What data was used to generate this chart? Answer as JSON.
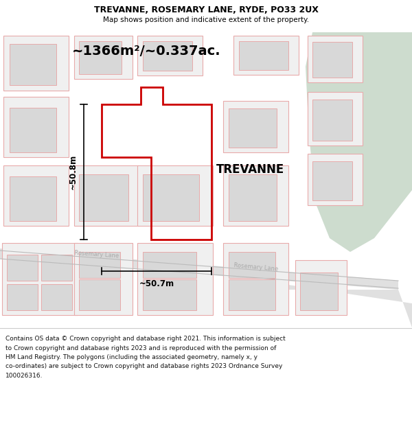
{
  "title": "TREVANNE, ROSEMARY LANE, RYDE, PO33 2UX",
  "subtitle": "Map shows position and indicative extent of the property.",
  "footer_lines": [
    "Contains OS data © Crown copyright and database right 2021. This information is subject",
    "to Crown copyright and database rights 2023 and is reproduced with the permission of",
    "HM Land Registry. The polygons (including the associated geometry, namely x, y",
    "co-ordinates) are subject to Crown copyright and database rights 2023 Ordnance Survey",
    "100026316."
  ],
  "area_label": "~1366m²/~0.337ac.",
  "property_label": "TREVANNE",
  "dim_vertical": "~50.8m",
  "dim_horizontal": "~50.7m",
  "road_label_left": "Rosemary Lane",
  "road_label_right": "Rosemary Lane",
  "map_bg": "#ffffff",
  "green_color": "#cddcce",
  "plot_color": "#cc0000",
  "plot_lw": 2.0,
  "block_fill": "#f0f0f0",
  "block_edge": "#e8aaaa",
  "block_lw": 0.8,
  "bldg_fill": "#d8d8d8",
  "bldg_edge": "#e8aaaa",
  "bldg_lw": 0.7,
  "road_fill": "#e0e0e0",
  "dim_line_color": "#000000",
  "text_color": "#000000",
  "road_text_color": "#aaaaaa"
}
